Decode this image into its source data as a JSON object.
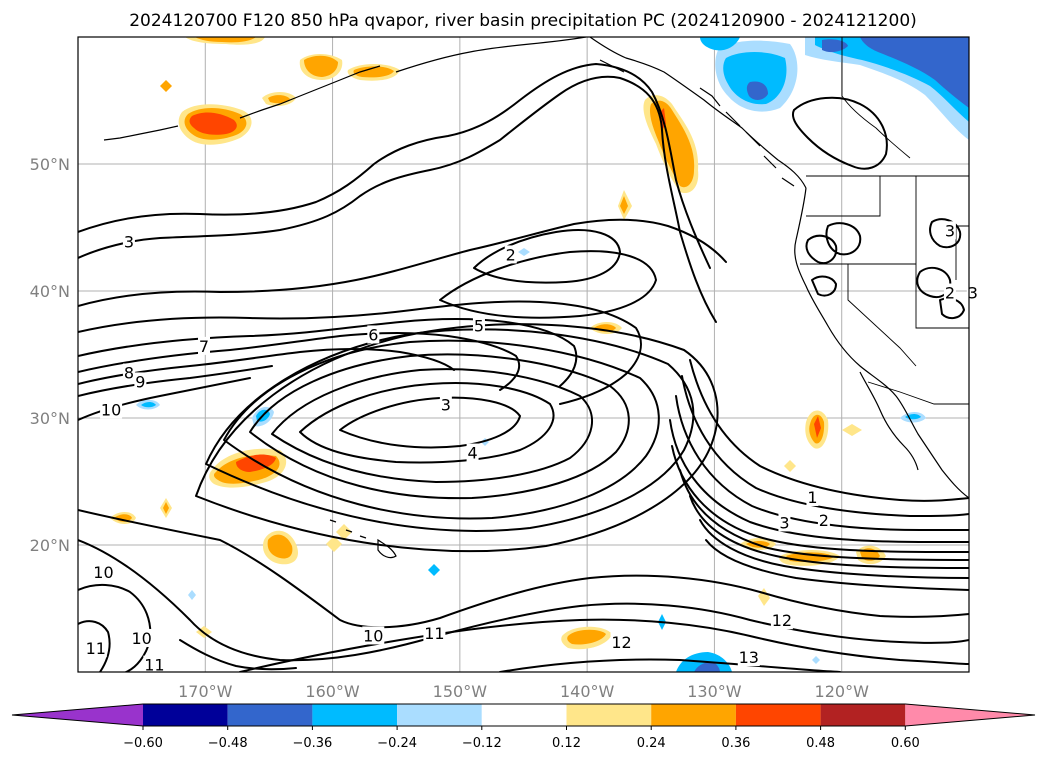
{
  "chart_data": {
    "type": "contour",
    "title": "2024120700 F120 850 hPa qvapor, river basin precipitation PC (2024120900 - 2024121200)",
    "projection": "PlateCarree",
    "lon_range": [
      -180,
      -110
    ],
    "lat_range": [
      10,
      60
    ],
    "grid": true,
    "lon_ticks": [
      {
        "value": -170,
        "label": "170°W"
      },
      {
        "value": -160,
        "label": "160°W"
      },
      {
        "value": -150,
        "label": "150°W"
      },
      {
        "value": -140,
        "label": "140°W"
      },
      {
        "value": -130,
        "label": "130°W"
      },
      {
        "value": -120,
        "label": "120°W"
      }
    ],
    "lat_ticks": [
      {
        "value": 20,
        "label": "20°N"
      },
      {
        "value": 30,
        "label": "30°N"
      },
      {
        "value": 40,
        "label": "40°N"
      },
      {
        "value": 50,
        "label": "50°N"
      }
    ],
    "contour_labels": [
      {
        "text": "3",
        "lon": -176,
        "lat": 43.8
      },
      {
        "text": "2",
        "lon": -146,
        "lat": 42.8
      },
      {
        "text": "5",
        "lon": -148.5,
        "lat": 37.2
      },
      {
        "text": "6",
        "lon": -156.8,
        "lat": 36.5
      },
      {
        "text": "7",
        "lon": -170.1,
        "lat": 35.6
      },
      {
        "text": "8",
        "lon": -176,
        "lat": 33.5
      },
      {
        "text": "9",
        "lon": -175.1,
        "lat": 32.8
      },
      {
        "text": "10",
        "lon": -177.4,
        "lat": 30.6
      },
      {
        "text": "3",
        "lon": -151.1,
        "lat": 31.0
      },
      {
        "text": "4",
        "lon": -149,
        "lat": 27.2
      },
      {
        "text": "1",
        "lon": -122.3,
        "lat": 23.7
      },
      {
        "text": "3",
        "lon": -124.5,
        "lat": 21.7
      },
      {
        "text": "2",
        "lon": -121.4,
        "lat": 21.9
      },
      {
        "text": "3",
        "lon": -111.5,
        "lat": 44.7
      },
      {
        "text": "2",
        "lon": -111.5,
        "lat": 39.8
      },
      {
        "text": "3",
        "lon": -109.7,
        "lat": 39.8
      },
      {
        "text": "10",
        "lon": -178,
        "lat": 17.8
      },
      {
        "text": "10",
        "lon": -175,
        "lat": 12.6
      },
      {
        "text": "11",
        "lon": -178.6,
        "lat": 11.8
      },
      {
        "text": "11",
        "lon": -174,
        "lat": 10.5
      },
      {
        "text": "10",
        "lon": -156.8,
        "lat": 12.8
      },
      {
        "text": "11",
        "lon": -152,
        "lat": 13.0
      },
      {
        "text": "12",
        "lon": -137.3,
        "lat": 12.3
      },
      {
        "text": "12",
        "lon": -124.7,
        "lat": 14.0
      },
      {
        "text": "13",
        "lon": -127.3,
        "lat": 11.1
      }
    ],
    "colorbar": {
      "levels": [
        -0.6,
        -0.48,
        -0.36,
        -0.24,
        -0.12,
        0.12,
        0.24,
        0.36,
        0.48,
        0.6
      ],
      "tick_labels": [
        "−0.60",
        "−0.48",
        "−0.36",
        "−0.24",
        "−0.12",
        "0.12",
        "0.24",
        "0.36",
        "0.48",
        "0.60"
      ],
      "colors": [
        "#9933cc",
        "#000099",
        "#3366cc",
        "#00bbff",
        "#aaddff",
        "#ffffff",
        "#ffe68a",
        "#ffa500",
        "#ff4500",
        "#b22222",
        "#ff8aaa"
      ],
      "extend": "both"
    }
  }
}
